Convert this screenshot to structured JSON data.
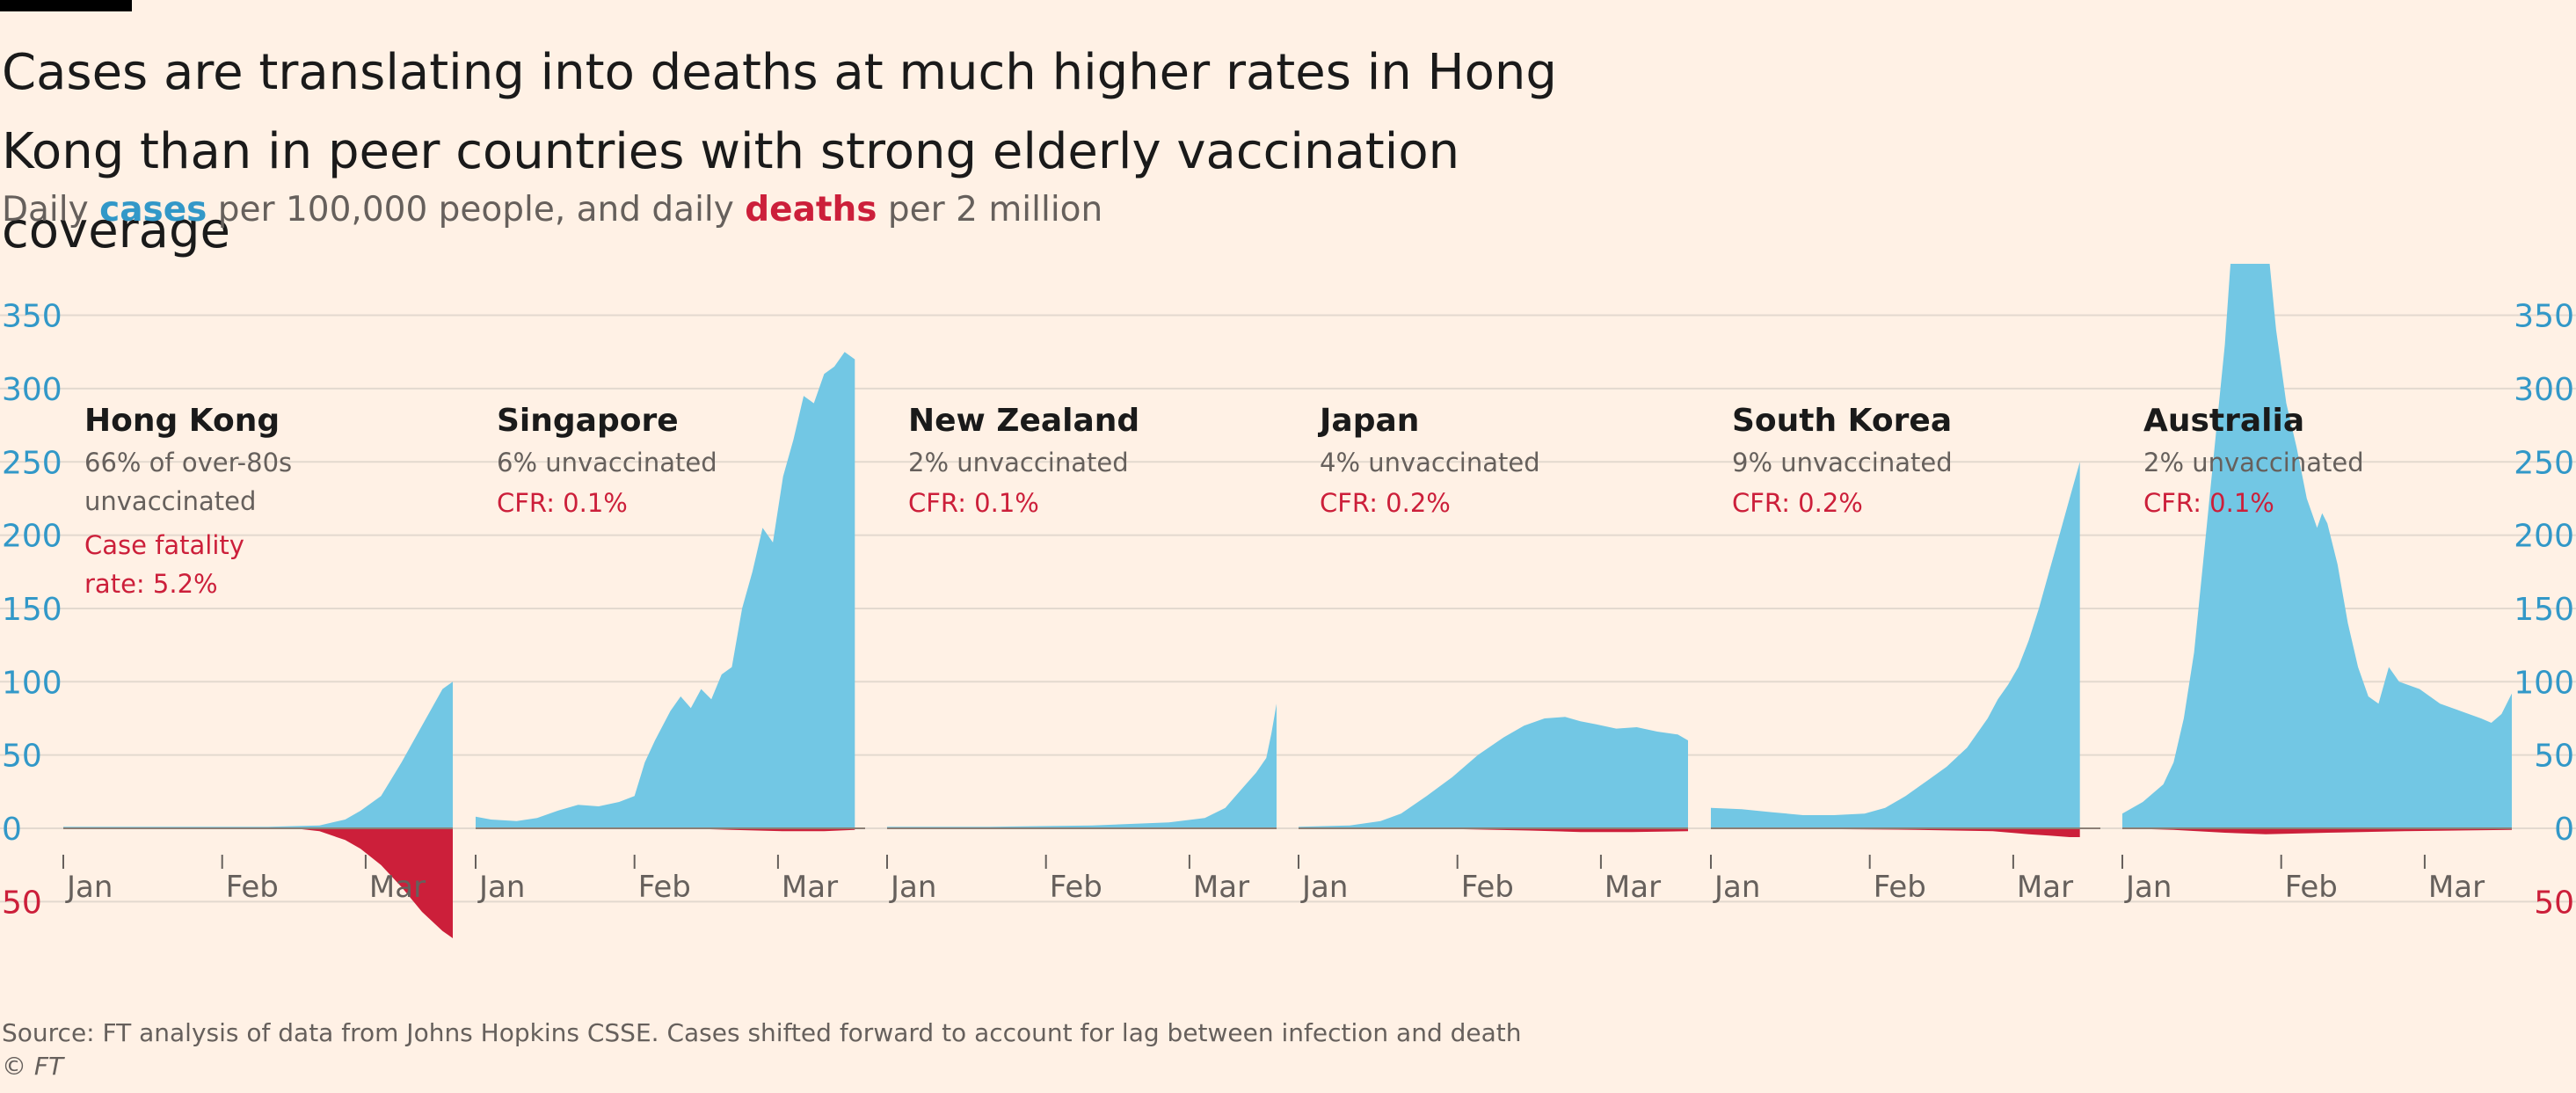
{
  "title": "Cases are translating into deaths at much higher rates in Hong Kong than in peer countries with strong elderly vaccination coverage",
  "subtitle": {
    "prefix": "Daily ",
    "cases_word": "cases",
    "middle": " per 100,000 people, and daily ",
    "deaths_word": "deaths",
    "suffix": " per 2 million"
  },
  "colors": {
    "cases": "#72c7e4",
    "deaths": "#cc1f3a",
    "axis_label": "#3298c8",
    "grid": "#e3d9cf",
    "background": "#fff1e5"
  },
  "source": "Source: FT analysis of data from Johns Hopkins CSSE. Cases shifted forward to account for lag between infection and death",
  "copyright": "© FT",
  "chart_data": {
    "type": "area",
    "ylim": [
      -70,
      430
    ],
    "yticks": [
      350,
      300,
      250,
      200,
      150,
      100,
      50,
      0
    ],
    "ytick_labels": [
      "350",
      "300",
      "250",
      "200",
      "150",
      "100",
      "50",
      "0"
    ],
    "negative_ytick": {
      "value": -50,
      "label": "50"
    },
    "xlim": [
      0,
      76
    ],
    "xticks": [
      {
        "day": 0,
        "label": "Jan"
      },
      {
        "day": 31,
        "label": "Feb"
      },
      {
        "day": 59,
        "label": "Mar"
      }
    ],
    "series": [
      {
        "name": "cases"
      },
      {
        "name": "deaths"
      }
    ],
    "panels": [
      {
        "country": "Hong Kong",
        "note_lines": [
          "66% of over-80s",
          "unvaccinated"
        ],
        "cfr_lines": [
          "Case fatality",
          "rate: 5.2%"
        ],
        "cases": [
          [
            0,
            1
          ],
          [
            20,
            1
          ],
          [
            40,
            1
          ],
          [
            50,
            2
          ],
          [
            55,
            6
          ],
          [
            58,
            12
          ],
          [
            62,
            22
          ],
          [
            66,
            45
          ],
          [
            70,
            70
          ],
          [
            74,
            95
          ],
          [
            76,
            100
          ]
        ],
        "deaths": [
          [
            0,
            0
          ],
          [
            45,
            0
          ],
          [
            50,
            -2
          ],
          [
            55,
            -8
          ],
          [
            58,
            -14
          ],
          [
            62,
            -25
          ],
          [
            66,
            -40
          ],
          [
            70,
            -57
          ],
          [
            74,
            -70
          ],
          [
            76,
            -75
          ]
        ]
      },
      {
        "country": "Singapore",
        "note_lines": [
          "6% unvaccinated"
        ],
        "cfr_lines": [
          "CFR: 0.1%"
        ],
        "cases": [
          [
            0,
            8
          ],
          [
            3,
            6
          ],
          [
            8,
            5
          ],
          [
            12,
            7
          ],
          [
            16,
            12
          ],
          [
            20,
            16
          ],
          [
            24,
            15
          ],
          [
            28,
            18
          ],
          [
            31,
            22
          ],
          [
            33,
            45
          ],
          [
            35,
            60
          ],
          [
            38,
            80
          ],
          [
            40,
            90
          ],
          [
            42,
            82
          ],
          [
            44,
            95
          ],
          [
            46,
            88
          ],
          [
            48,
            105
          ],
          [
            50,
            110
          ],
          [
            52,
            150
          ],
          [
            54,
            175
          ],
          [
            56,
            205
          ],
          [
            58,
            195
          ],
          [
            60,
            240
          ],
          [
            62,
            265
          ],
          [
            64,
            295
          ],
          [
            66,
            290
          ],
          [
            68,
            310
          ],
          [
            70,
            315
          ],
          [
            72,
            325
          ],
          [
            74,
            320
          ]
        ],
        "deaths": [
          [
            0,
            0
          ],
          [
            40,
            0
          ],
          [
            50,
            -1
          ],
          [
            60,
            -2
          ],
          [
            68,
            -2
          ],
          [
            74,
            -1
          ]
        ]
      },
      {
        "country": "New Zealand",
        "note_lines": [
          "2% unvaccinated"
        ],
        "cfr_lines": [
          "CFR: 0.1%"
        ],
        "cases": [
          [
            0,
            1
          ],
          [
            20,
            1
          ],
          [
            40,
            2
          ],
          [
            55,
            4
          ],
          [
            62,
            7
          ],
          [
            66,
            14
          ],
          [
            68,
            22
          ],
          [
            70,
            30
          ],
          [
            72,
            38
          ],
          [
            74,
            48
          ],
          [
            75,
            65
          ],
          [
            76,
            85
          ]
        ],
        "deaths": [
          [
            0,
            0
          ],
          [
            76,
            0
          ]
        ]
      },
      {
        "country": "Japan",
        "note_lines": [
          "4% unvaccinated"
        ],
        "cfr_lines": [
          "CFR: 0.2%"
        ],
        "cases": [
          [
            0,
            1
          ],
          [
            10,
            2
          ],
          [
            16,
            5
          ],
          [
            20,
            10
          ],
          [
            25,
            22
          ],
          [
            30,
            35
          ],
          [
            35,
            50
          ],
          [
            40,
            62
          ],
          [
            44,
            70
          ],
          [
            48,
            75
          ],
          [
            52,
            76
          ],
          [
            55,
            73
          ],
          [
            58,
            71
          ],
          [
            62,
            68
          ],
          [
            66,
            69
          ],
          [
            70,
            66
          ],
          [
            74,
            64
          ],
          [
            76,
            60
          ]
        ],
        "deaths": [
          [
            0,
            0
          ],
          [
            20,
            0
          ],
          [
            30,
            -0.5
          ],
          [
            45,
            -1.5
          ],
          [
            55,
            -2.5
          ],
          [
            65,
            -2.5
          ],
          [
            76,
            -2
          ]
        ]
      },
      {
        "country": "South Korea",
        "note_lines": [
          "9% unvaccinated"
        ],
        "cfr_lines": [
          "CFR: 0.2%"
        ],
        "cases": [
          [
            0,
            14
          ],
          [
            6,
            13
          ],
          [
            12,
            11
          ],
          [
            18,
            9
          ],
          [
            24,
            9
          ],
          [
            30,
            10
          ],
          [
            34,
            14
          ],
          [
            38,
            22
          ],
          [
            42,
            32
          ],
          [
            46,
            42
          ],
          [
            50,
            55
          ],
          [
            54,
            75
          ],
          [
            56,
            88
          ],
          [
            58,
            98
          ],
          [
            60,
            110
          ],
          [
            62,
            128
          ],
          [
            64,
            150
          ],
          [
            66,
            175
          ],
          [
            68,
            200
          ],
          [
            70,
            225
          ],
          [
            72,
            250
          ]
        ],
        "deaths": [
          [
            0,
            0
          ],
          [
            20,
            -0.5
          ],
          [
            40,
            -1
          ],
          [
            55,
            -2
          ],
          [
            62,
            -4
          ],
          [
            66,
            -5
          ],
          [
            70,
            -6
          ],
          [
            72,
            -6
          ]
        ]
      },
      {
        "country": "Australia",
        "note_lines": [
          "2% unvaccinated"
        ],
        "cfr_lines": [
          "CFR: 0.1%"
        ],
        "cases": [
          [
            0,
            10
          ],
          [
            4,
            18
          ],
          [
            8,
            30
          ],
          [
            10,
            45
          ],
          [
            12,
            75
          ],
          [
            14,
            120
          ],
          [
            16,
            190
          ],
          [
            18,
            260
          ],
          [
            20,
            330
          ],
          [
            21,
            380
          ],
          [
            22,
            425
          ],
          [
            24,
            420
          ],
          [
            26,
            415
          ],
          [
            28,
            412
          ],
          [
            30,
            340
          ],
          [
            32,
            290
          ],
          [
            34,
            260
          ],
          [
            36,
            225
          ],
          [
            38,
            205
          ],
          [
            39,
            215
          ],
          [
            40,
            208
          ],
          [
            42,
            180
          ],
          [
            44,
            140
          ],
          [
            46,
            110
          ],
          [
            48,
            90
          ],
          [
            50,
            85
          ],
          [
            52,
            110
          ],
          [
            54,
            100
          ],
          [
            58,
            95
          ],
          [
            62,
            85
          ],
          [
            66,
            80
          ],
          [
            70,
            75
          ],
          [
            72,
            72
          ],
          [
            74,
            78
          ],
          [
            76,
            92
          ]
        ],
        "deaths": [
          [
            0,
            0
          ],
          [
            10,
            -1
          ],
          [
            20,
            -3
          ],
          [
            28,
            -4
          ],
          [
            40,
            -3
          ],
          [
            55,
            -2
          ],
          [
            76,
            -1
          ]
        ]
      }
    ]
  }
}
